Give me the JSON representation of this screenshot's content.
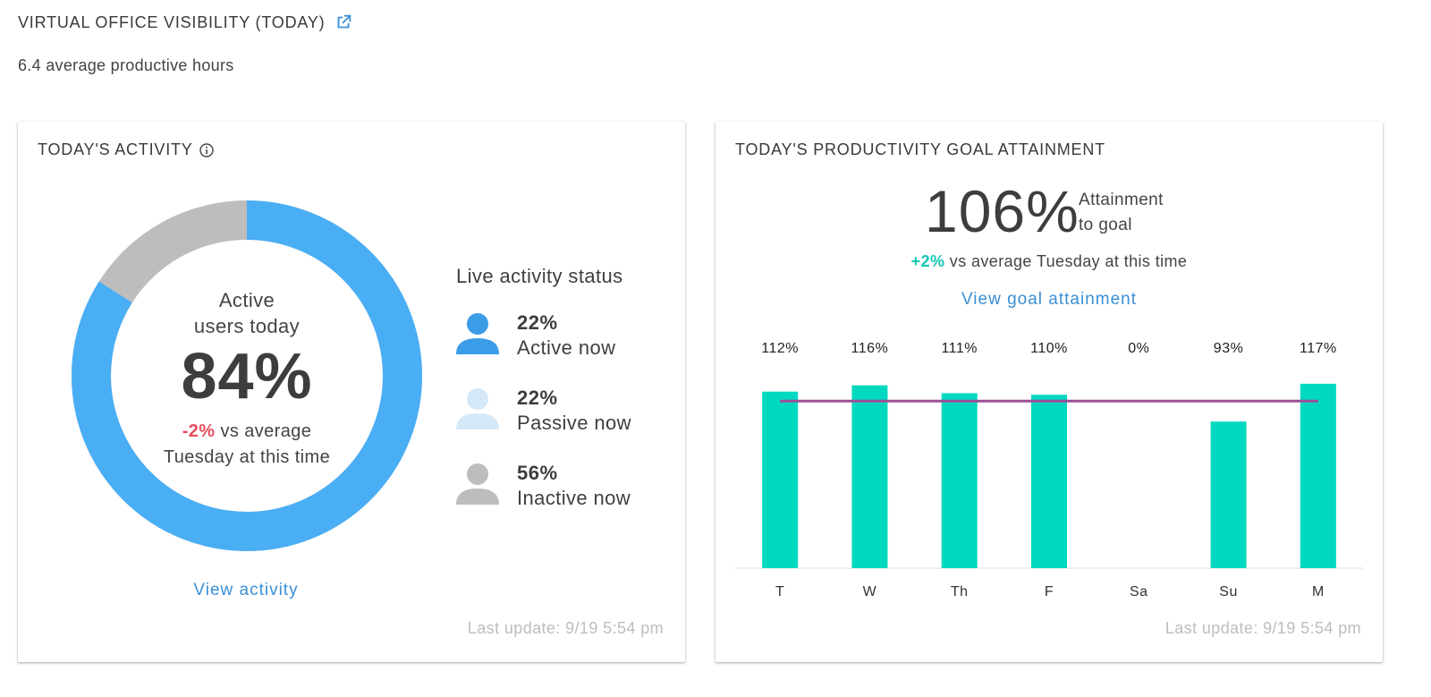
{
  "header": {
    "title": "VIRTUAL OFFICE VISIBILITY (TODAY)",
    "subtitle": "6.4 average productive hours"
  },
  "activity_card": {
    "title": "TODAY'S ACTIVITY",
    "donut_label_line1": "Active",
    "donut_label_line2": "users today",
    "active_percent_text": "84%",
    "active_fraction": 0.84,
    "compare_delta": "-2%",
    "compare_text_1": " vs average",
    "compare_text_2": "Tuesday at this time",
    "live_status_title": "Live activity status",
    "statuses": [
      {
        "percent": "22%",
        "label": "Active now",
        "color": "#3b9ce8"
      },
      {
        "percent": "22%",
        "label": "Passive now",
        "color": "#d4e8f8"
      },
      {
        "percent": "56%",
        "label": "Inactive now",
        "color": "#bdbdbd"
      }
    ],
    "view_link": "View activity",
    "last_update": "Last update: 9/19 5:54 pm",
    "colors": {
      "active": "#4aaef5",
      "rest": "#bdbdbd"
    }
  },
  "goal_card": {
    "title": "TODAY'S PRODUCTIVITY GOAL ATTAINMENT",
    "attainment": "106%",
    "attainment_label_1": "Attainment",
    "attainment_label_2": "to goal",
    "compare_delta": "+2%",
    "compare_text": " vs average Tuesday at this time",
    "view_link": "View goal attainment",
    "last_update": "Last update: 9/19 5:54 pm"
  },
  "chart_data": {
    "type": "bar",
    "categories": [
      "T",
      "W",
      "Th",
      "F",
      "Sa",
      "Su",
      "M"
    ],
    "values": [
      112,
      116,
      111,
      110,
      0,
      93,
      117
    ],
    "value_labels": [
      "112%",
      "116%",
      "111%",
      "110%",
      "0%",
      "93%",
      "117%"
    ],
    "goal_line": 106,
    "ylim": [
      0,
      130
    ],
    "bar_color": "#00d9c0",
    "goal_color": "#9b4f96",
    "title": "",
    "xlabel": "",
    "ylabel": ""
  }
}
